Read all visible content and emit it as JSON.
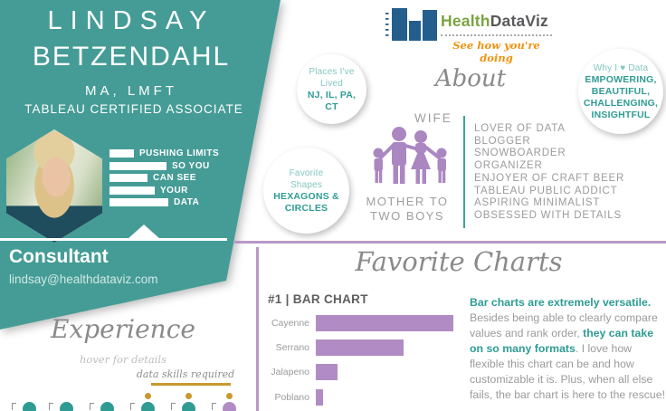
{
  "banner": {
    "name_line1": "LINDSAY",
    "name_line2": "BETZENDAHL",
    "credentials": "MA, LMFT",
    "cert_title": "TABLEAU CERTIFIED ASSOCIATE",
    "tagline_rows": [
      {
        "bar": 27,
        "text": "PUSHING LIMITS"
      },
      {
        "bar": 63,
        "text": "SO YOU"
      },
      {
        "bar": 42,
        "text": "CAN SEE"
      },
      {
        "bar": 50,
        "text": "YOUR"
      },
      {
        "bar": 65,
        "text": "DATA"
      }
    ],
    "role": "Consultant",
    "email": "lindsay@healthdataviz.com"
  },
  "logo": {
    "brand_primary": "Health",
    "brand_secondary": "DataViz",
    "tagline": "See how you're doing",
    "icon": "bar-chart-logo-icon"
  },
  "about": {
    "heading": "About",
    "circles": [
      {
        "key": "places",
        "lines": [
          {
            "t": "Places I've",
            "b": false
          },
          {
            "t": "Lived",
            "b": false
          },
          {
            "t": "NJ, IL, PA,",
            "b": true
          },
          {
            "t": "CT",
            "b": true
          }
        ]
      },
      {
        "key": "shapes",
        "lines": [
          {
            "t": "Favorite",
            "b": false
          },
          {
            "t": "Shapes",
            "b": false
          },
          {
            "t": "HEXAGONS &",
            "b": true
          },
          {
            "t": "CIRCLES",
            "b": true
          }
        ]
      },
      {
        "key": "why",
        "lines": [
          {
            "t": "Why I ♥ Data",
            "b": false
          },
          {
            "t": "EMPOWERING,",
            "b": true
          },
          {
            "t": "BEAUTIFUL,",
            "b": true
          },
          {
            "t": "CHALLENGING,",
            "b": true
          },
          {
            "t": "INSIGHTFUL",
            "b": true
          }
        ]
      }
    ],
    "family_label_top": "WIFE",
    "family_label_bottom_line1": "MOTHER TO",
    "family_label_bottom_line2": "TWO BOYS",
    "family_icon": "family-icon",
    "traits": [
      "LOVER OF DATA",
      "BLOGGER",
      "SNOWBOARDER",
      "ORGANIZER",
      "ENJOYER OF CRAFT BEER",
      "TABLEAU PUBLIC ADDICT",
      "ASPIRING MINIMALIST",
      "OBSESSED WITH DETAILS"
    ]
  },
  "experience": {
    "heading": "Experience",
    "subheading": "hover for details",
    "legend": "data skills required",
    "icons": [
      {
        "color": "teal",
        "skill_dot": false
      },
      {
        "color": "teal",
        "skill_dot": false
      },
      {
        "color": "teal",
        "skill_dot": false
      },
      {
        "color": "teal",
        "skill_dot": true
      },
      {
        "color": "teal",
        "skill_dot": true
      },
      {
        "color": "purple",
        "skill_dot": true
      }
    ]
  },
  "favorite_charts": {
    "heading": "Favorite Charts",
    "paragraph": [
      {
        "t": "Bar charts are extremely versatile.",
        "em": true
      },
      {
        "t": " Besides being able to clearly compare values and rank order, ",
        "em": false
      },
      {
        "t": "they can take on so many formats",
        "em": true
      },
      {
        "t": ". I love how flexible this chart can be and how customizable it is. Plus, when all else fails, the bar chart is here to the rescue!",
        "em": false
      }
    ]
  },
  "chart_data": {
    "type": "bar",
    "title": "#1 | BAR CHART",
    "orientation": "horizontal",
    "categories": [
      "Cayenne",
      "Serrano",
      "Jalapeno",
      "Poblano"
    ],
    "values": [
      100,
      64,
      16,
      5
    ],
    "values_note": "relative bar lengths, max = 100; no value axis or data labels shown",
    "bar_color": "#b18cc4",
    "grid": false,
    "legend": false
  },
  "colors": {
    "teal": "#459c96",
    "teal_text": "#2f9c94",
    "teal_light_text": "#82c7c0",
    "purple": "#b18cc4",
    "purple_border": "#b897c6",
    "gold": "#c9992e",
    "gray_text": "#9b9b9b",
    "logo_green": "#7aa440",
    "logo_navy": "#235e8d",
    "logo_gray": "#58595b",
    "logo_orange": "#f0920f"
  }
}
